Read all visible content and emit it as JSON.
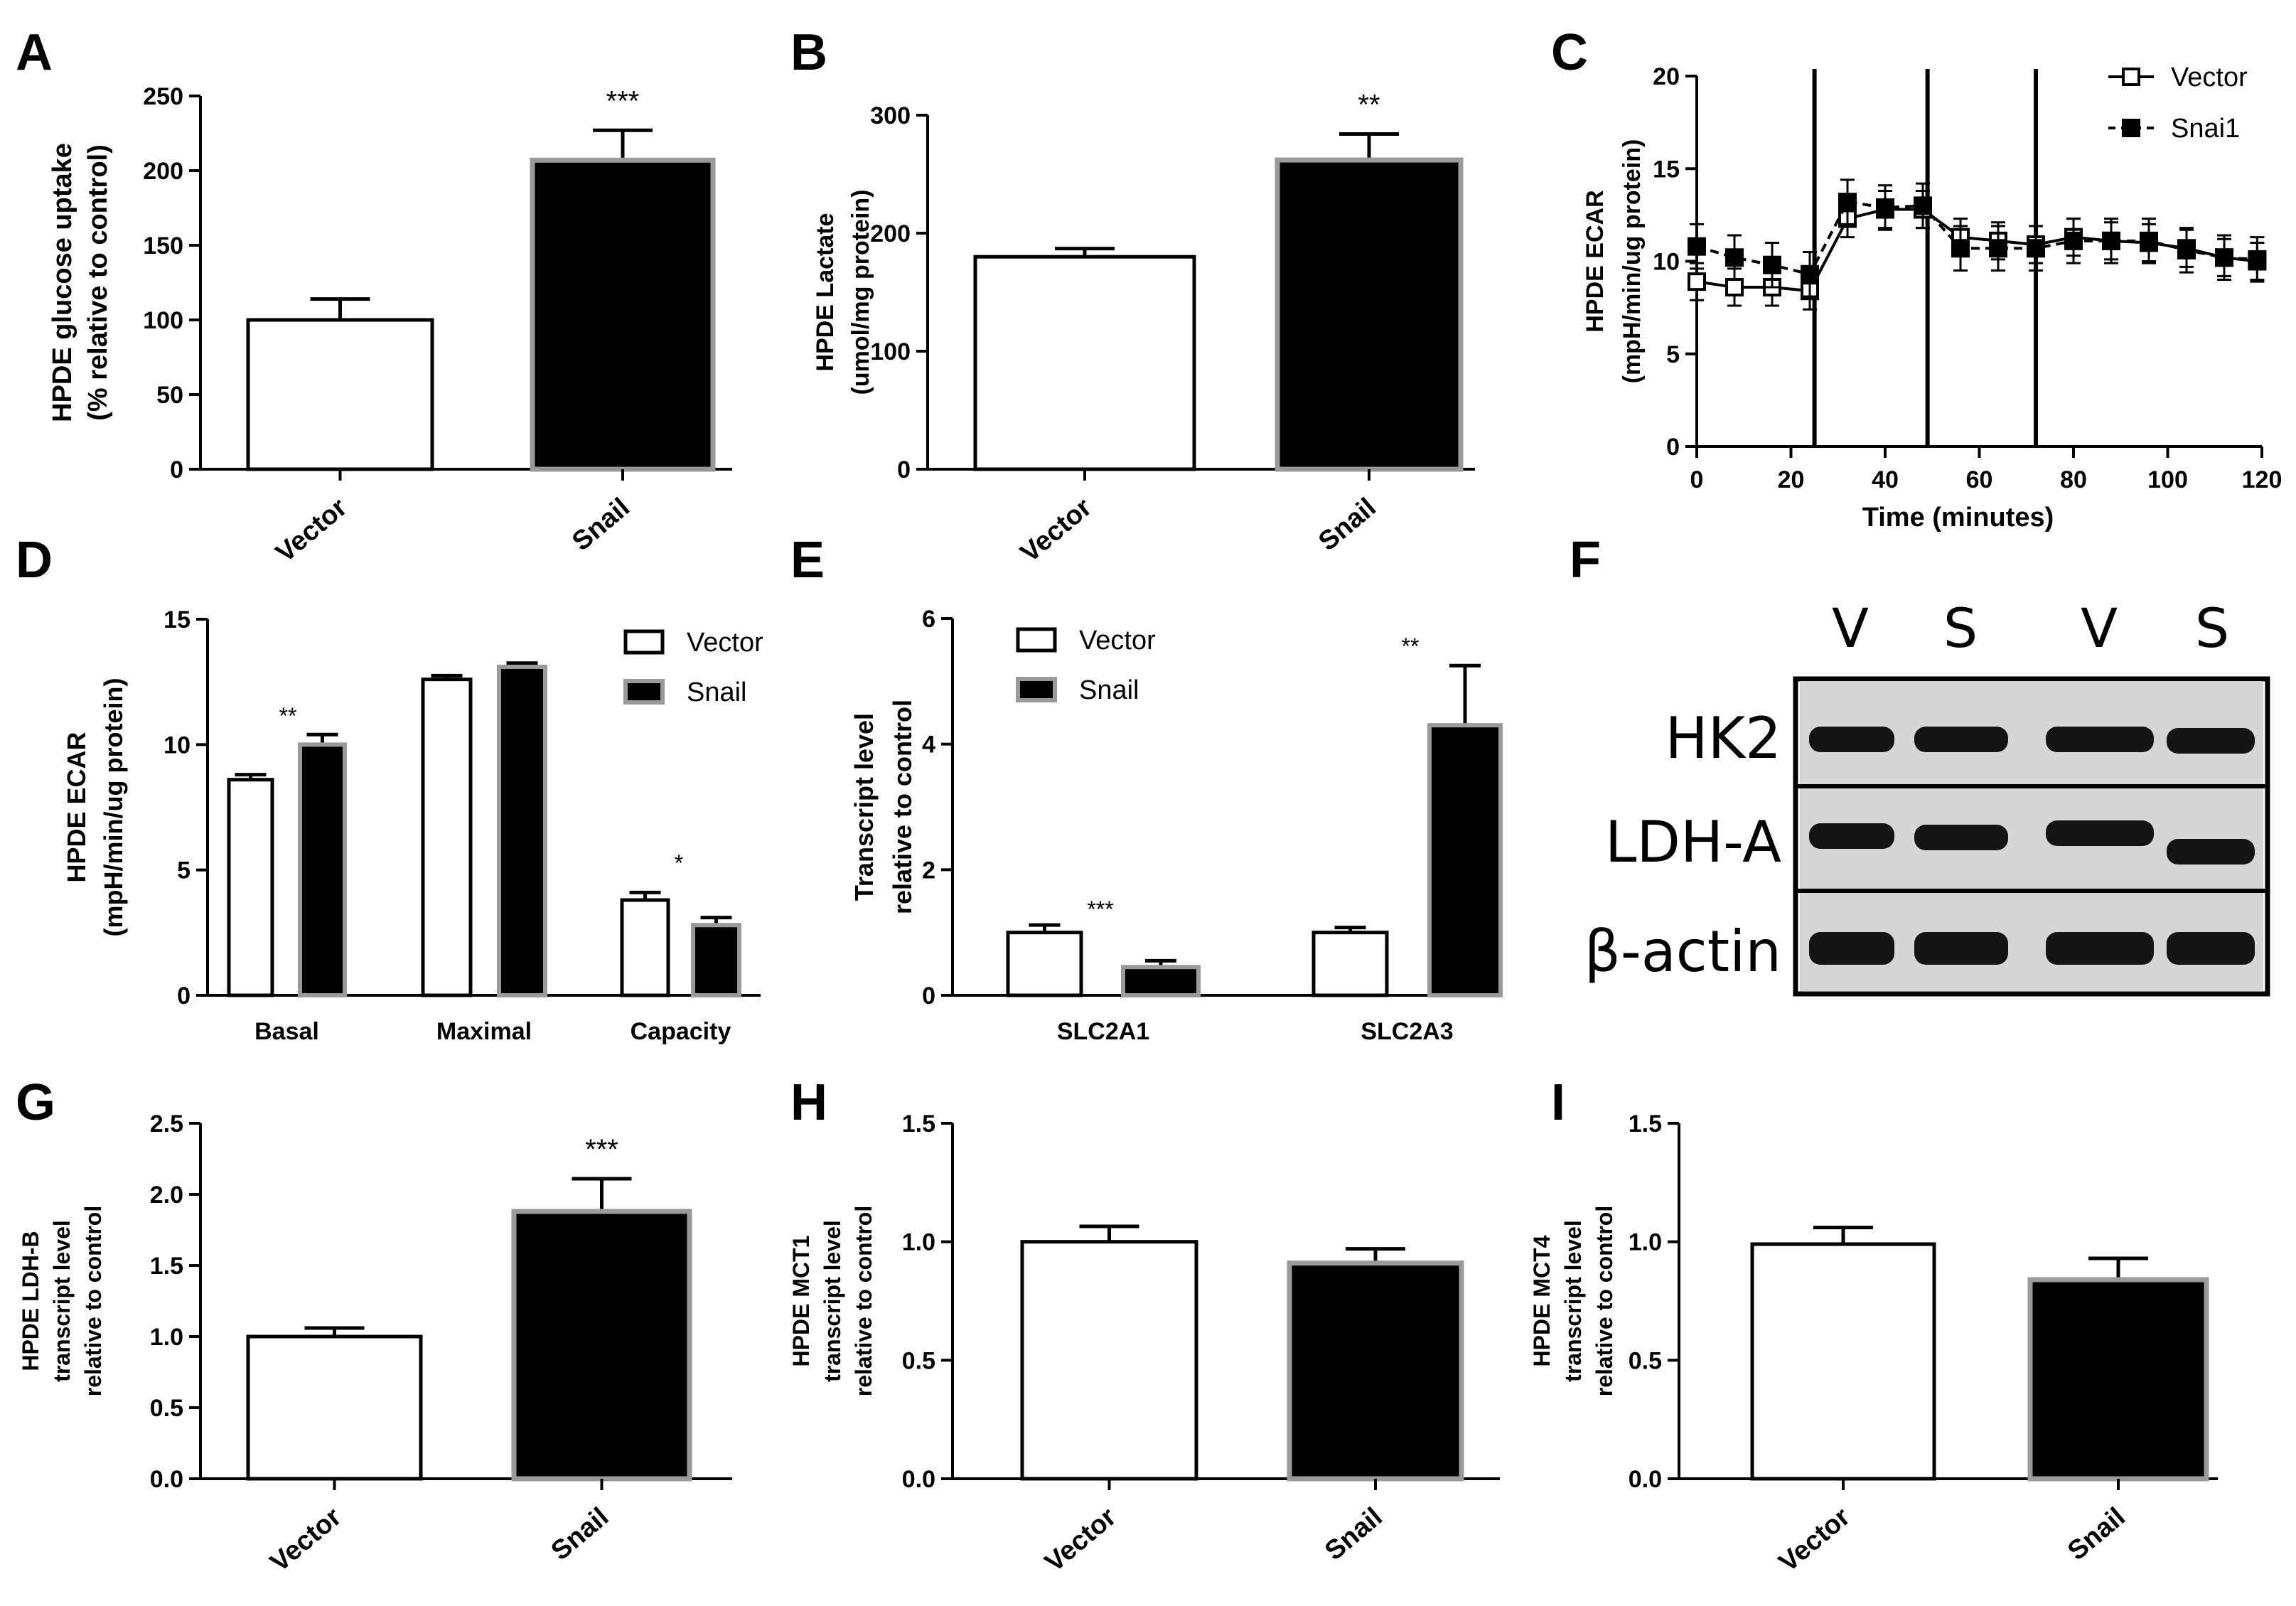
{
  "colors": {
    "black": "#000000",
    "white": "#ffffff",
    "gray_outline": "#9a9a9a",
    "blot_bg": "#d6d6d6",
    "band": "#141414"
  },
  "chart_data": [
    {
      "id": "A",
      "panel": "A",
      "type": "bar",
      "ylabel": [
        "HPDE glucose uptake",
        "(% relative to control)"
      ],
      "ylim": [
        0,
        250
      ],
      "yticks": [
        "0",
        "50",
        "100",
        "150",
        "200",
        "250"
      ],
      "categories": [
        "Vector",
        "Snail"
      ],
      "values": [
        100,
        207
      ],
      "errors": [
        14,
        20
      ],
      "sig": [
        "",
        "***"
      ]
    },
    {
      "id": "B",
      "panel": "B",
      "type": "bar",
      "ylabel": [
        "HPDE Lactate",
        "(umol/mg protein)"
      ],
      "ylim": [
        0,
        300
      ],
      "yticks": [
        "0",
        "100",
        "200",
        "300"
      ],
      "categories": [
        "Vector",
        "Snail"
      ],
      "values": [
        180,
        262
      ],
      "errors": [
        7,
        22
      ],
      "sig": [
        "",
        "**"
      ]
    },
    {
      "id": "C",
      "panel": "C",
      "type": "line",
      "ylabel": [
        "HPDE ECAR",
        "(mpH/min/ug protein)"
      ],
      "xlabel": "Time (minutes)",
      "xlim": [
        0,
        120
      ],
      "ylim": [
        0,
        20
      ],
      "xticks": [
        "0",
        "20",
        "40",
        "60",
        "80",
        "100",
        "120"
      ],
      "yticks": [
        "0",
        "5",
        "10",
        "15",
        "20"
      ],
      "injections": [
        25,
        49,
        72
      ],
      "x": [
        0,
        8,
        16,
        24,
        32,
        40,
        48,
        56,
        64,
        72,
        80,
        88,
        96,
        104,
        112,
        119
      ],
      "series": [
        {
          "name": "Vector",
          "marker": "open-square",
          "dash": false,
          "values": [
            8.9,
            8.6,
            8.6,
            8.4,
            12.3,
            12.8,
            12.8,
            11.3,
            11.1,
            10.9,
            11.3,
            11.1,
            11.0,
            10.7,
            10.2,
            10.0
          ],
          "err": 1.0
        },
        {
          "name": "Snai1",
          "marker": "filled-square",
          "dash": true,
          "values": [
            10.8,
            10.2,
            9.8,
            9.3,
            13.2,
            12.9,
            13.0,
            10.7,
            10.7,
            10.7,
            11.1,
            11.1,
            11.1,
            10.6,
            10.2,
            10.1
          ],
          "err": 1.2
        }
      ]
    },
    {
      "id": "D",
      "panel": "D",
      "type": "bar",
      "ylabel": [
        "HPDE ECAR",
        "(mpH/min/ug protein)"
      ],
      "ylim": [
        0,
        15
      ],
      "yticks": [
        "0",
        "5",
        "10",
        "15"
      ],
      "categories": [
        "Basal",
        "Maximal",
        "Capacity"
      ],
      "series": [
        {
          "name": "Vector",
          "values": [
            8.6,
            12.6,
            3.8
          ],
          "errors": [
            0.2,
            0.15,
            0.3
          ]
        },
        {
          "name": "Snail",
          "values": [
            10.0,
            13.1,
            2.8
          ],
          "errors": [
            0.4,
            0.15,
            0.3
          ]
        }
      ],
      "sig": [
        {
          "category": 0,
          "text": "**"
        },
        {
          "category": 2,
          "text": "*"
        }
      ]
    },
    {
      "id": "E",
      "panel": "E",
      "type": "bar",
      "ylabel": [
        "Transcript level",
        "relative to control"
      ],
      "ylim": [
        0,
        6
      ],
      "yticks": [
        "0",
        "2",
        "4",
        "6"
      ],
      "categories": [
        "SLC2A1",
        "SLC2A3"
      ],
      "series": [
        {
          "name": "Vector",
          "values": [
            1.0,
            1.0
          ],
          "errors": [
            0.12,
            0.08
          ]
        },
        {
          "name": "Snail",
          "values": [
            0.45,
            4.3
          ],
          "errors": [
            0.1,
            0.95
          ]
        }
      ],
      "sig": [
        {
          "category": 0,
          "text": "***"
        },
        {
          "category": 1,
          "text": "**"
        }
      ]
    },
    {
      "id": "G",
      "panel": "G",
      "type": "bar",
      "ylabel": [
        "HPDE LDH-B",
        "transcript level",
        "relative to control"
      ],
      "ylim": [
        0,
        2.5
      ],
      "yticks": [
        "0.0",
        "0.5",
        "1.0",
        "1.5",
        "2.0",
        "2.5"
      ],
      "categories": [
        "Vector",
        "Snail"
      ],
      "values": [
        1.0,
        1.88
      ],
      "errors": [
        0.06,
        0.23
      ],
      "sig": [
        "",
        "***"
      ]
    },
    {
      "id": "H",
      "panel": "H",
      "type": "bar",
      "ylabel": [
        "HPDE MCT1",
        "transcript level",
        "relative to control"
      ],
      "ylim": [
        0,
        1.5
      ],
      "yticks": [
        "0.0",
        "0.5",
        "1.0",
        "1.5"
      ],
      "categories": [
        "Vector",
        "Snail"
      ],
      "values": [
        1.0,
        0.91
      ],
      "errors": [
        0.065,
        0.06
      ],
      "sig": [
        "",
        ""
      ]
    },
    {
      "id": "I",
      "panel": "I",
      "type": "bar",
      "ylabel": [
        "HPDE MCT4",
        "transcript level",
        "relative to control"
      ],
      "ylim": [
        0,
        1.5
      ],
      "yticks": [
        "0.0",
        "0.5",
        "1.0",
        "1.5"
      ],
      "categories": [
        "Vector",
        "Snail"
      ],
      "values": [
        0.99,
        0.84
      ],
      "errors": [
        0.07,
        0.09
      ],
      "sig": [
        "",
        ""
      ]
    }
  ],
  "blot": {
    "panel": "F",
    "lanes": [
      "V",
      "S",
      "V",
      "S"
    ],
    "rows": [
      {
        "label": "HK2"
      },
      {
        "label": "LDH-A"
      },
      {
        "label": "β-actin"
      }
    ]
  }
}
